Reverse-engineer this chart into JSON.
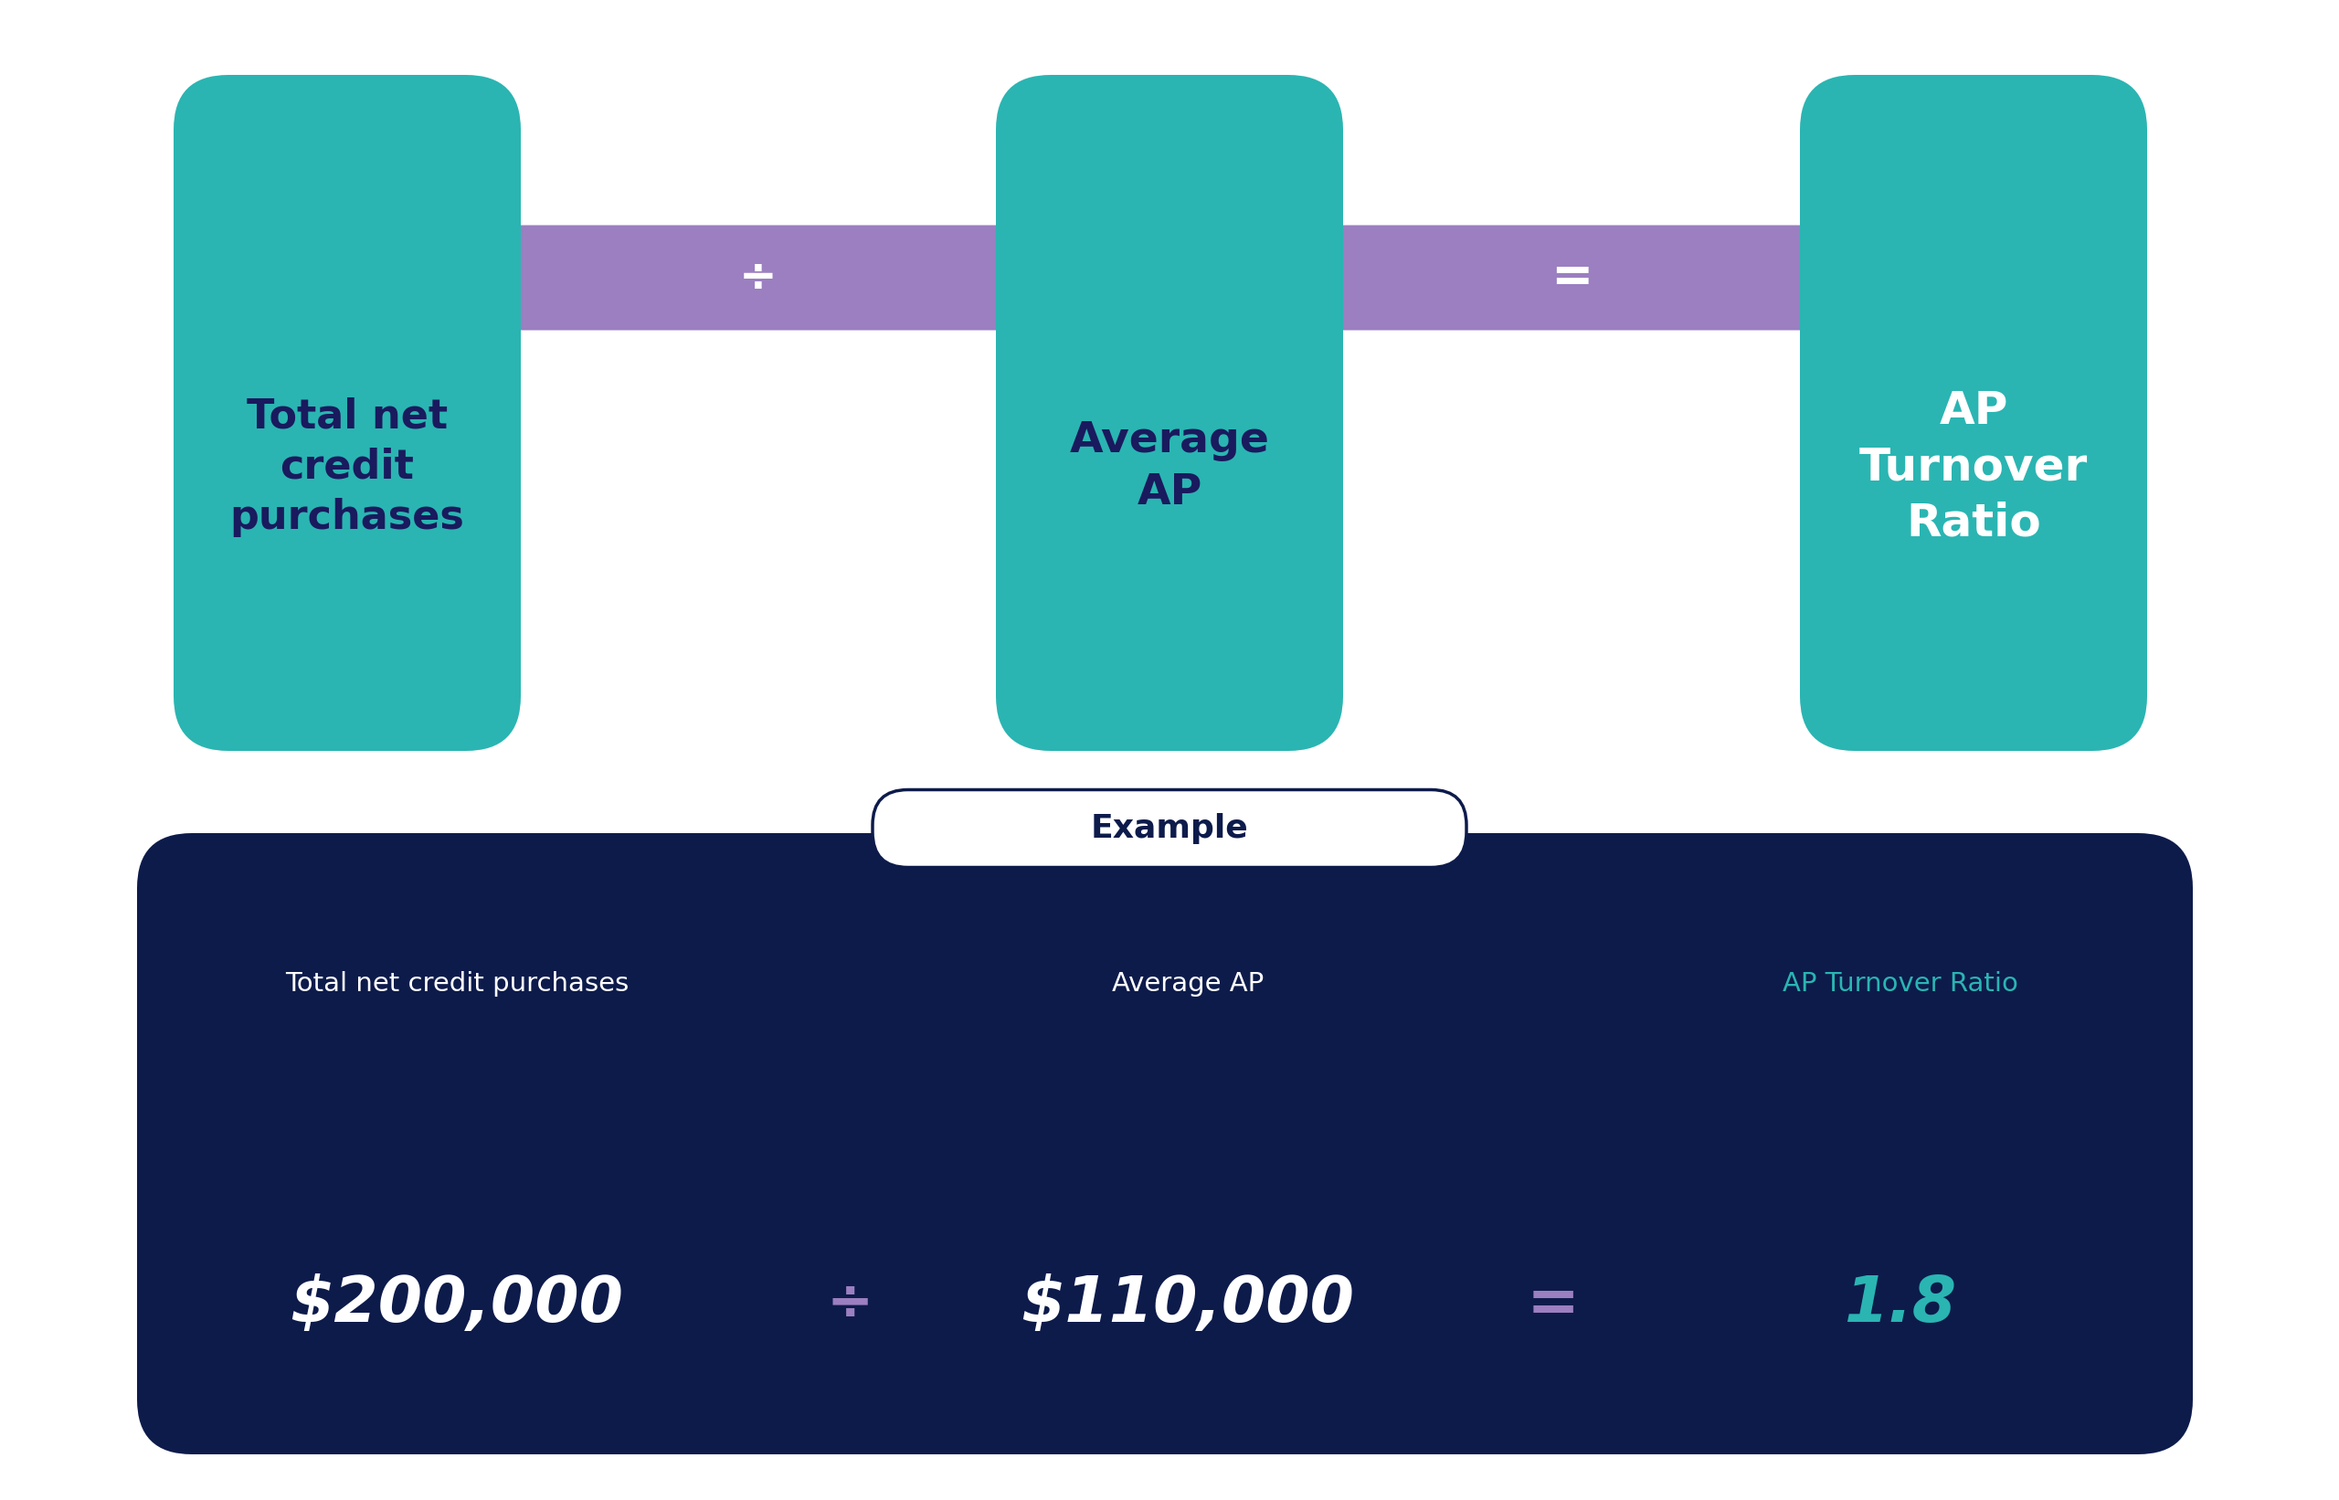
{
  "bg_color": "#ffffff",
  "teal_color": "#2ab5b2",
  "purple_color": "#9b7fc0",
  "navy_color": "#1a1a5e",
  "white_color": "#ffffff",
  "dark_navy": "#0d1b4b",
  "box1_text": "Total net\ncredit\npurchases",
  "box2_text": "Average\nAP",
  "box3_text": "AP\nTurnover\nRatio",
  "div_symbol": "÷",
  "eq_symbol": "=",
  "example_label": "Example",
  "ex_label1": "Total net credit purchases",
  "ex_label2": "Average AP",
  "ex_label3": "AP Turnover Ratio",
  "ex_val1": "$200,000",
  "ex_val2": "$110,000",
  "ex_val3": "1.8",
  "example_bg": "#0d1b4b",
  "example_label_bg": "#ffffff",
  "example_label_border": "#0d1b4b",
  "example_label_color": "#0d1b4b"
}
